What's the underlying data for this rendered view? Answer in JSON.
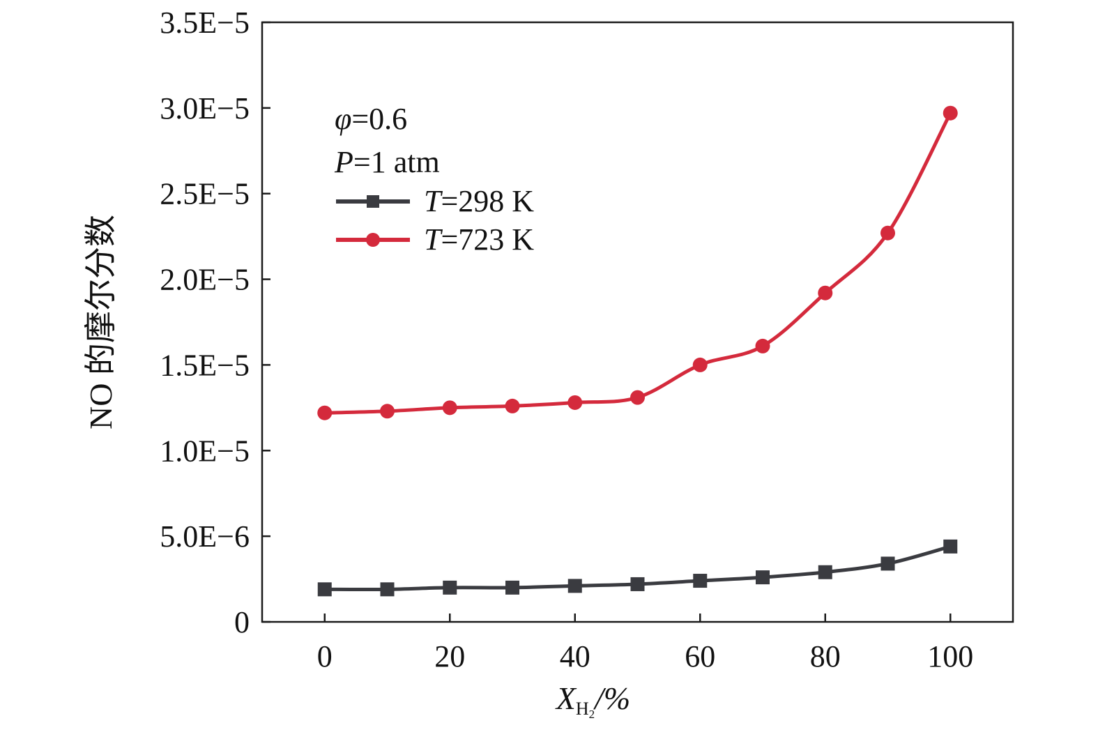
{
  "chart_data": {
    "type": "line",
    "xlabel": {
      "main": "X",
      "sub": "H",
      "subsub": "2",
      "suffix": "/%"
    },
    "ylabel": "NO 的摩尔分数",
    "xlim": [
      -10,
      110
    ],
    "ylim": [
      0,
      3.5e-05
    ],
    "xticks": [
      {
        "value": 0,
        "label": "0"
      },
      {
        "value": 20,
        "label": "20"
      },
      {
        "value": 40,
        "label": "40"
      },
      {
        "value": 60,
        "label": "60"
      },
      {
        "value": 80,
        "label": "80"
      },
      {
        "value": 100,
        "label": "100"
      }
    ],
    "yticks": [
      {
        "value": 0,
        "label": "0"
      },
      {
        "value": 5e-06,
        "label": "5.0E−6"
      },
      {
        "value": 1e-05,
        "label": "1.0E−5"
      },
      {
        "value": 1.5e-05,
        "label": "1.5E−5"
      },
      {
        "value": 2e-05,
        "label": "2.0E−5"
      },
      {
        "value": 2.5e-05,
        "label": "2.5E−5"
      },
      {
        "value": 3e-05,
        "label": "3.0E−5"
      },
      {
        "value": 3.5e-05,
        "label": "3.5E−5"
      }
    ],
    "grid": false,
    "legend_position": "top-left",
    "annotations": [
      {
        "symbol": "φ",
        "rest": "=0.6"
      },
      {
        "symbol": "P",
        "rest": "=1 atm"
      }
    ],
    "x": [
      0,
      10,
      20,
      30,
      40,
      50,
      60,
      70,
      80,
      90,
      100
    ],
    "series": [
      {
        "symbol": "T",
        "rest": "=298 K",
        "color": "#3a3b40",
        "marker": "square",
        "values": [
          1.9e-06,
          1.9e-06,
          2e-06,
          2e-06,
          2.1e-06,
          2.2e-06,
          2.4e-06,
          2.6e-06,
          2.9e-06,
          3.4e-06,
          4.4e-06
        ]
      },
      {
        "symbol": "T",
        "rest": "=723 K",
        "color": "#d42a3c",
        "marker": "circle",
        "values": [
          1.22e-05,
          1.23e-05,
          1.25e-05,
          1.26e-05,
          1.28e-05,
          1.31e-05,
          1.5e-05,
          1.61e-05,
          1.92e-05,
          2.27e-05,
          2.97e-05
        ]
      }
    ]
  }
}
